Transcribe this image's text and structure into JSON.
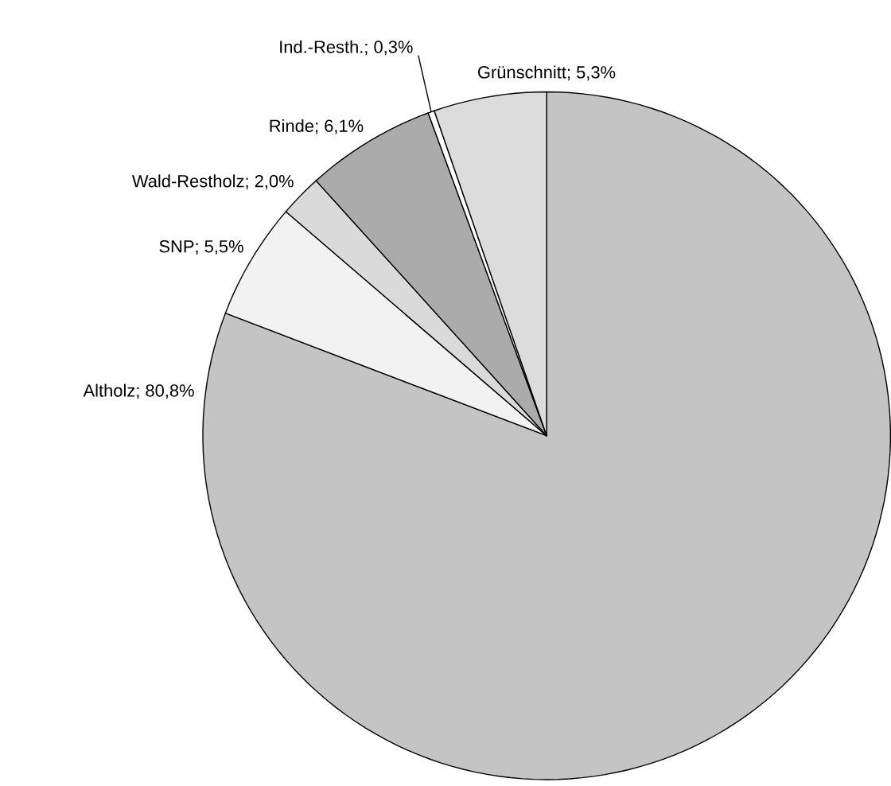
{
  "chart_data": {
    "type": "pie",
    "categories": [
      "Altholz",
      "SNP",
      "Wald-Restholz",
      "Rinde",
      "Ind.-Resth.",
      "Grünschnitt"
    ],
    "values": [
      80.8,
      5.5,
      2.0,
      6.1,
      0.3,
      5.3
    ],
    "colors": [
      "#c4c4c4",
      "#f2f2f2",
      "#dadada",
      "#ababab",
      "#ffffff",
      "#dcdcdc"
    ],
    "value_labels": [
      "; 80,8%",
      "; 5,5%",
      "; 2,0%",
      "; 6,1%",
      "; 0,3%",
      "; 5,3%"
    ]
  }
}
